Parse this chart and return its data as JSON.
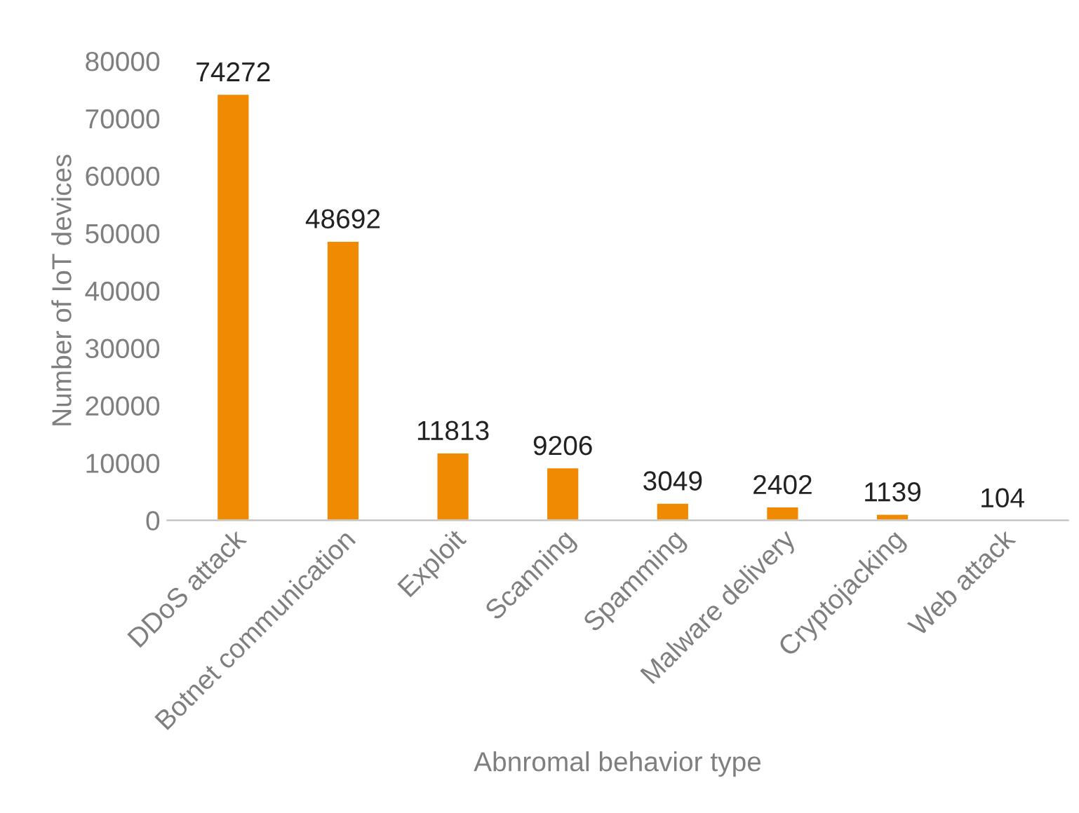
{
  "chart_data": {
    "type": "bar",
    "categories": [
      "DDoS attack",
      "Botnet communication",
      "Exploit",
      "Scanning",
      "Spamming",
      "Malware delivery",
      "Cryptojacking",
      "Web attack"
    ],
    "values": [
      74272,
      48692,
      11813,
      9206,
      3049,
      2402,
      1139,
      104
    ],
    "color": "#f08a00",
    "xlabel": "Abnromal behavior type",
    "ylabel": "Number of IoT devices",
    "ylim": [
      0,
      80000
    ],
    "yticks": [
      0,
      10000,
      20000,
      30000,
      40000,
      50000,
      60000,
      70000,
      80000
    ],
    "data_labels": true,
    "grid": false,
    "legend": false
  }
}
